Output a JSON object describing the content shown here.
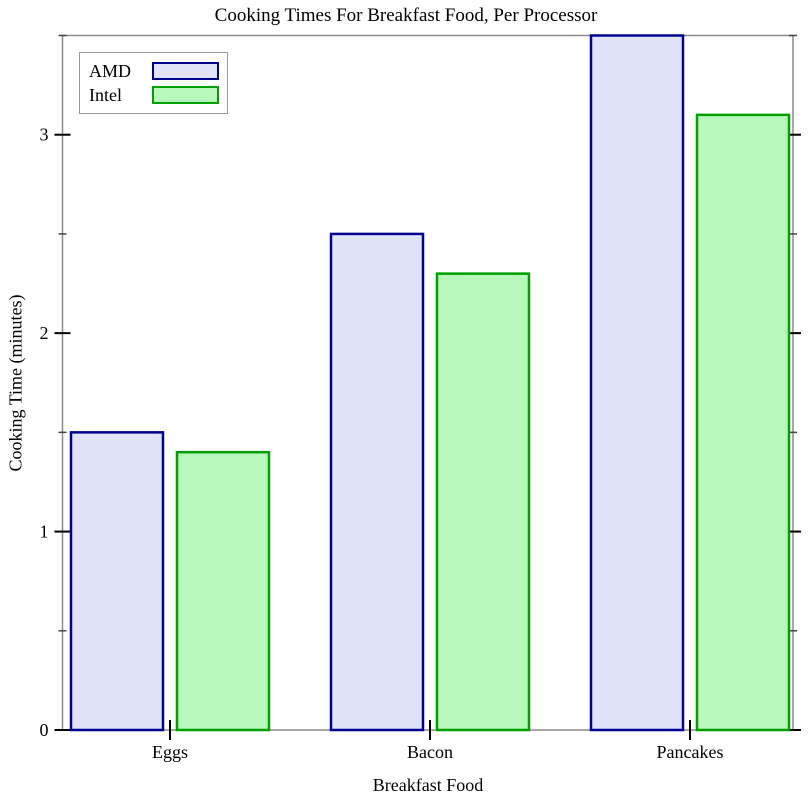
{
  "chart_data": {
    "type": "bar",
    "title": "Cooking Times For Breakfast Food, Per Processor",
    "xlabel": "Breakfast Food",
    "ylabel": "Cooking Time (minutes)",
    "categories": [
      "Eggs",
      "Bacon",
      "Pancakes"
    ],
    "series": [
      {
        "name": "AMD",
        "values": [
          1.5,
          2.5,
          3.5
        ],
        "fill": "#e0e3fa",
        "stroke": "#000090"
      },
      {
        "name": "Intel",
        "values": [
          1.4,
          2.3,
          3.1
        ],
        "fill": "#b8f8bc",
        "stroke": "#00a000"
      }
    ],
    "ylim": [
      0,
      3.5
    ],
    "y_major_ticks": [
      0,
      1,
      2,
      3
    ],
    "y_minor_ticks": [
      0.5,
      1.5,
      2.5,
      3.5
    ],
    "legend_position": "top-left",
    "grid": false,
    "axis_color": "#8a8a8a",
    "tick_color": "#000000",
    "background": "#ffffff"
  }
}
